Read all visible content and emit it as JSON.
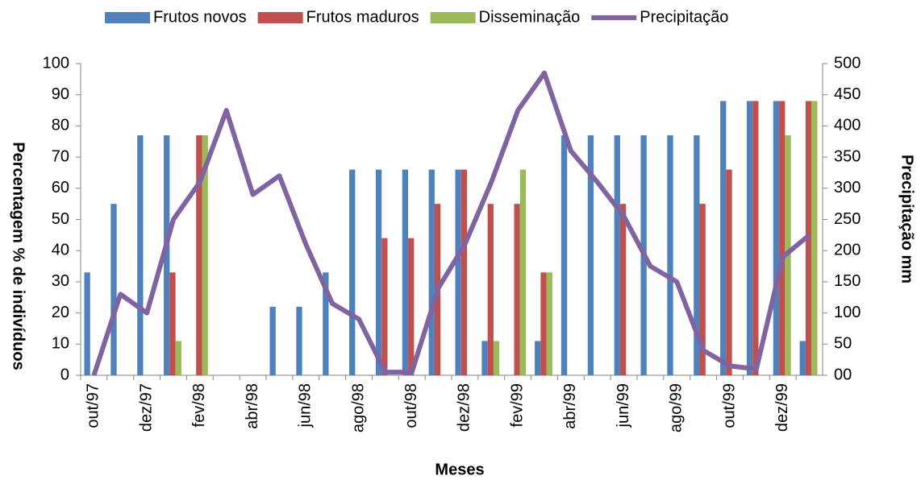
{
  "chart_data": {
    "type": "bar",
    "categories": [
      "out/97",
      null,
      "dez/97",
      null,
      "fev/98",
      null,
      "abr/98",
      null,
      "jun/98",
      null,
      "ago/98",
      null,
      "out/98",
      null,
      "dez/98",
      null,
      "fev/99",
      null,
      "abr/99",
      null,
      "jun/99",
      null,
      "ago/99",
      null,
      "out/99",
      null,
      "dez/99",
      null
    ],
    "x_label": "Meses",
    "y_label": "Percentagem % de indivíduos",
    "y2_label": "Precipitação mm",
    "legend": "top",
    "ylim": [
      0,
      100
    ],
    "yticks": [
      0,
      10,
      20,
      30,
      40,
      50,
      60,
      70,
      80,
      90,
      100
    ],
    "y2lim": [
      0,
      500
    ],
    "y2ticks": [
      {
        "value": 0,
        "label": "00"
      },
      50,
      100,
      150,
      200,
      250,
      300,
      350,
      400,
      450,
      500
    ],
    "series": [
      {
        "name": "Frutos novos",
        "type": "bar",
        "color": "#4f81bd",
        "values": [
          33,
          55,
          77,
          77,
          0,
          0,
          0,
          22,
          22,
          33,
          66,
          66,
          66,
          66,
          66,
          11,
          0,
          11,
          77,
          77,
          77,
          77,
          77,
          77,
          88,
          88,
          88,
          11
        ]
      },
      {
        "name": "Frutos maduros",
        "type": "bar",
        "color": "#c0504d",
        "values": [
          0,
          0,
          0,
          33,
          77,
          0,
          0,
          0,
          0,
          0,
          0,
          44,
          44,
          55,
          66,
          55,
          55,
          33,
          0,
          0,
          55,
          0,
          0,
          55,
          66,
          88,
          88,
          88
        ]
      },
      {
        "name": "Disseminação",
        "type": "bar",
        "color": "#9bbb59",
        "values": [
          0,
          0,
          0,
          11,
          77,
          0,
          0,
          0,
          0,
          0,
          0,
          0,
          0,
          0,
          0,
          11,
          66,
          33,
          0,
          0,
          0,
          0,
          0,
          0,
          0,
          0,
          77,
          88
        ]
      },
      {
        "name": "Precipitação",
        "type": "line",
        "axis": "y2",
        "color": "#8064a2",
        "values": [
          0,
          130,
          100,
          250,
          310,
          425,
          290,
          320,
          210,
          115,
          90,
          5,
          5,
          140,
          210,
          310,
          425,
          485,
          360,
          310,
          255,
          175,
          150,
          40,
          15,
          10,
          190,
          225
        ]
      }
    ]
  }
}
